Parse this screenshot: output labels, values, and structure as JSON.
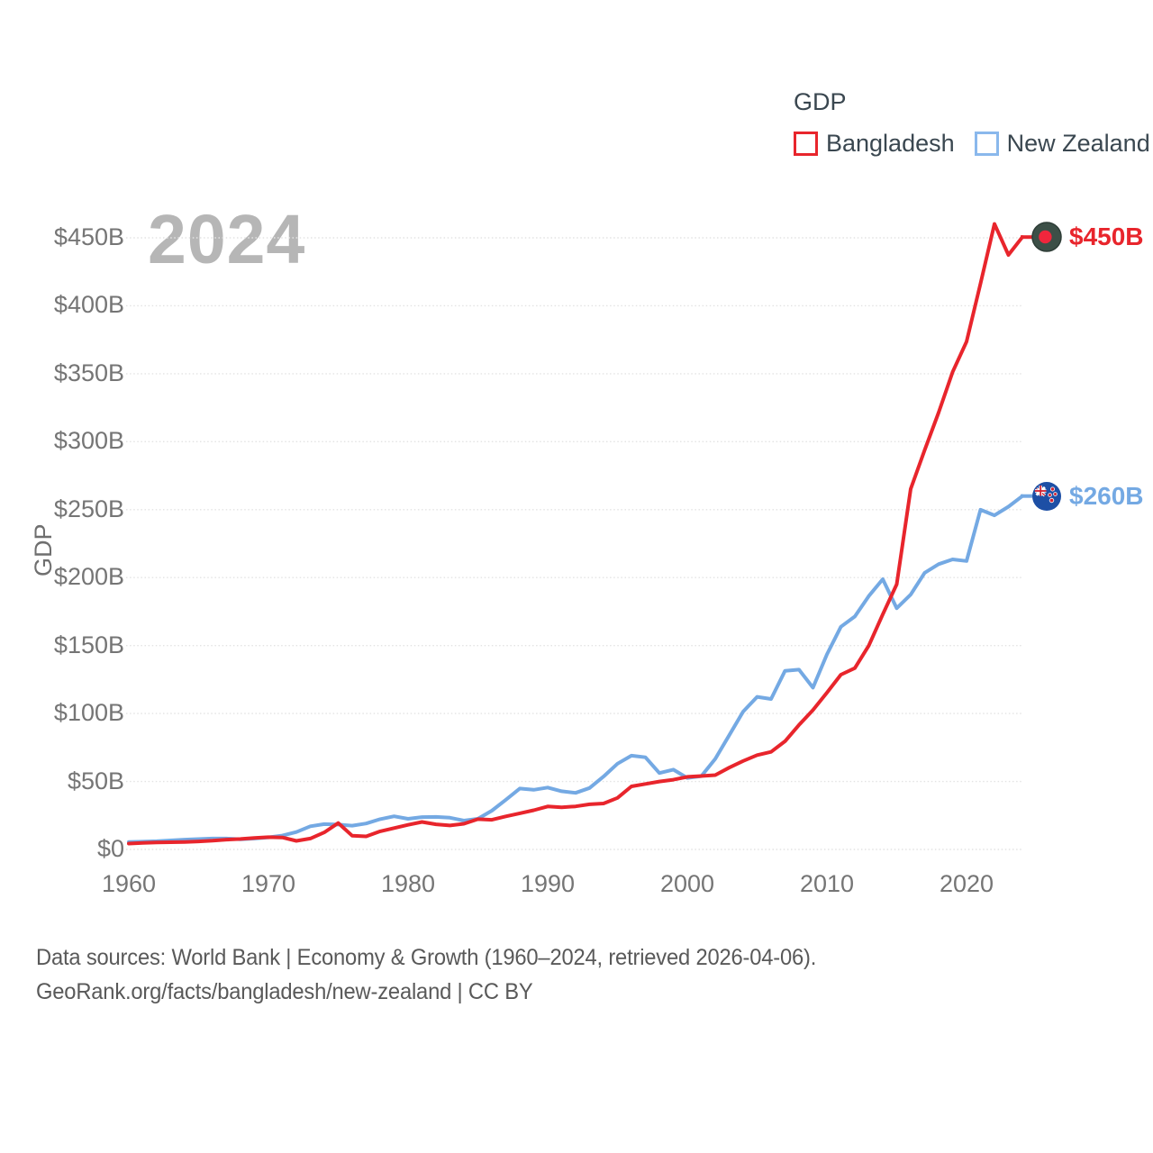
{
  "legend": {
    "title": "GDP",
    "items": [
      {
        "label": "Bangladesh",
        "color": "#e8252c"
      },
      {
        "label": "New Zealand",
        "color": "#8ab8ec"
      }
    ]
  },
  "footer": {
    "line1": "Data sources: World Bank | Economy & Growth (1960–2024, retrieved 2026-04-06).",
    "line2": "GeoRank.org/facts/bangladesh/new-zealand | CC BY"
  },
  "chart_data": {
    "type": "line",
    "title": "GDP",
    "watermark": "2024",
    "ylabel": "GDP",
    "xlabel": "",
    "xlim": [
      1960,
      2024
    ],
    "ylim": [
      0,
      450
    ],
    "grid": "horizontal-dotted",
    "legend_position": "top-right",
    "x_tick_labels": [
      "1960",
      "1970",
      "1980",
      "1990",
      "2000",
      "2010",
      "2020"
    ],
    "y_tick_step": 50,
    "y_tick_labels": [
      "$0",
      "$50B",
      "$100B",
      "$150B",
      "$200B",
      "$250B",
      "$300B",
      "$350B",
      "$400B",
      "$450B"
    ],
    "years": [
      1960,
      1961,
      1962,
      1963,
      1964,
      1965,
      1966,
      1967,
      1968,
      1969,
      1970,
      1971,
      1972,
      1973,
      1974,
      1975,
      1976,
      1977,
      1978,
      1979,
      1980,
      1981,
      1982,
      1983,
      1984,
      1985,
      1986,
      1987,
      1988,
      1989,
      1990,
      1991,
      1992,
      1993,
      1994,
      1995,
      1996,
      1997,
      1998,
      1999,
      2000,
      2001,
      2002,
      2003,
      2004,
      2005,
      2006,
      2007,
      2008,
      2009,
      2010,
      2011,
      2012,
      2013,
      2014,
      2015,
      2016,
      2017,
      2018,
      2019,
      2020,
      2021,
      2022,
      2023,
      2024
    ],
    "series": [
      {
        "name": "Bangladesh",
        "color": "#e8252c",
        "icon": "bangladesh-flag-icon",
        "end_label": "$450B",
        "values": [
          4.3,
          4.8,
          5.1,
          5.3,
          5.5,
          5.9,
          6.4,
          7.2,
          7.7,
          8.4,
          9.0,
          8.8,
          6.3,
          8.0,
          12.5,
          19.4,
          10.1,
          9.6,
          13.3,
          15.7,
          18.1,
          20.2,
          18.5,
          17.6,
          18.9,
          22.3,
          21.8,
          24.3,
          26.6,
          28.8,
          31.6,
          31.0,
          31.7,
          33.2,
          33.8,
          37.9,
          46.4,
          48.2,
          50.0,
          51.3,
          53.4,
          54.0,
          54.7,
          60.2,
          65.1,
          69.4,
          71.8,
          79.6,
          91.6,
          102.5,
          115.3,
          128.6,
          133.4,
          150.0,
          172.9,
          195.1,
          265.2,
          293.8,
          321.4,
          351.2,
          373.6,
          416.3,
          460.2,
          437.4,
          450.5
        ]
      },
      {
        "name": "New Zealand",
        "color": "#74a9e3",
        "icon": "new-zealand-flag-icon",
        "end_label": "$260B",
        "values": [
          5.5,
          5.7,
          6.0,
          6.6,
          7.2,
          7.6,
          8.0,
          8.0,
          7.5,
          8.0,
          8.9,
          10.2,
          12.8,
          17.0,
          18.6,
          18.3,
          17.5,
          19.1,
          22.3,
          24.4,
          22.5,
          23.8,
          23.9,
          23.3,
          21.2,
          22.5,
          28.5,
          36.5,
          44.8,
          43.9,
          45.5,
          42.8,
          41.6,
          45.2,
          53.6,
          63.1,
          69.0,
          67.8,
          56.2,
          58.7,
          52.6,
          53.9,
          66.6,
          84.0,
          101.4,
          112.3,
          110.7,
          131.4,
          132.3,
          119.0,
          143.5,
          163.8,
          171.4,
          186.4,
          198.8,
          177.5,
          187.5,
          203.5,
          209.9,
          213.4,
          212.2,
          249.9,
          245.8,
          252.2,
          260.0
        ]
      }
    ]
  }
}
